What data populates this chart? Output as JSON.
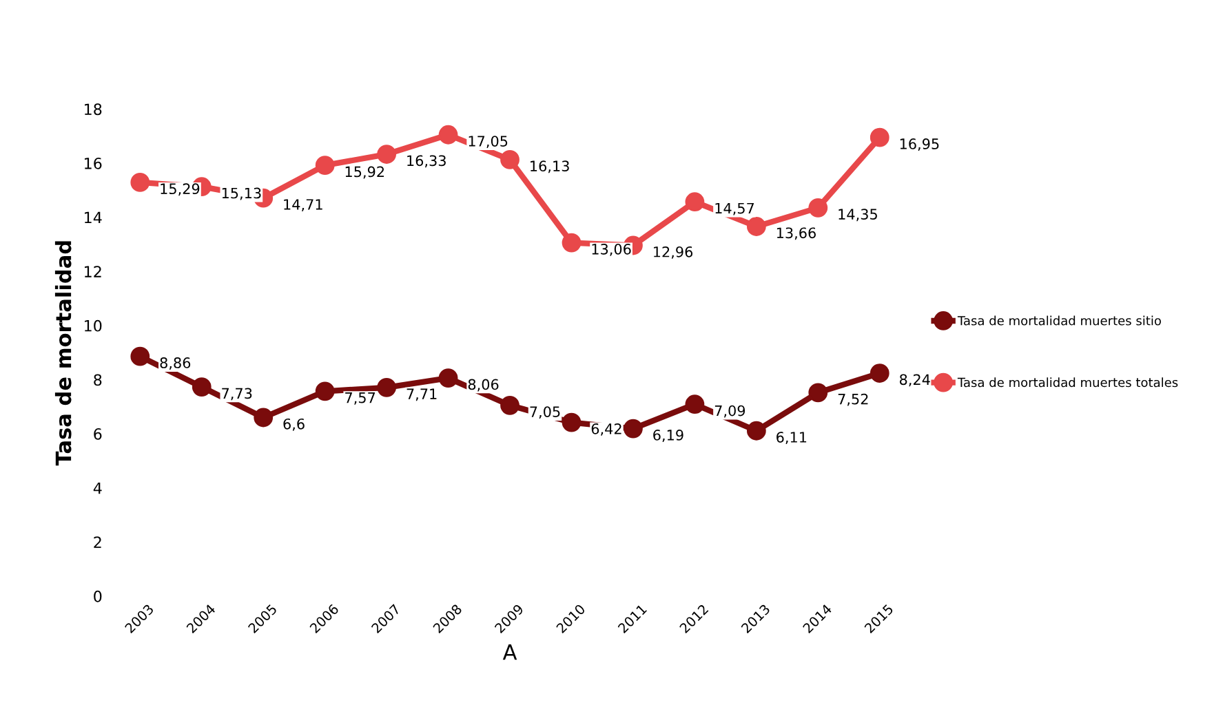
{
  "chart_data": {
    "type": "line",
    "xlabel": "A",
    "ylabel": "Tasa de mortalidad",
    "categories": [
      "2003",
      "2004",
      "2005",
      "2006",
      "2007",
      "2008",
      "2009",
      "2010",
      "2011",
      "2012",
      "2013",
      "2014",
      "2015"
    ],
    "series": [
      {
        "name": "Tasa de mortalidad muertes sitio",
        "color": "#7a0c0c",
        "values": [
          8.86,
          7.73,
          6.6,
          7.57,
          7.71,
          8.06,
          7.05,
          6.42,
          6.19,
          7.09,
          6.11,
          7.52,
          8.24
        ],
        "value_labels": [
          "8,86",
          "7,73",
          "6,6",
          "7,57",
          "7,71",
          "8,06",
          "7,05",
          "6,42",
          "6,19",
          "7,09",
          "6,11",
          "7,52",
          "8,24"
        ]
      },
      {
        "name": "Tasa de mortalidad muertes totales",
        "color": "#e8484a",
        "values": [
          15.29,
          15.13,
          14.71,
          15.92,
          16.33,
          17.05,
          16.13,
          13.06,
          12.96,
          14.57,
          13.66,
          14.35,
          16.95
        ],
        "value_labels": [
          "15,29",
          "15,13",
          "14,71",
          "15,92",
          "16,33",
          "17,05",
          "16,13",
          "13,06",
          "12,96",
          "14,57",
          "13,66",
          "14,35",
          "16,95"
        ]
      }
    ],
    "ylim": [
      0,
      18
    ],
    "yticks": [
      0,
      2,
      4,
      6,
      8,
      10,
      12,
      14,
      16,
      18
    ],
    "marker": "circle",
    "line_style": "solid",
    "grid": false,
    "legend": "right"
  }
}
